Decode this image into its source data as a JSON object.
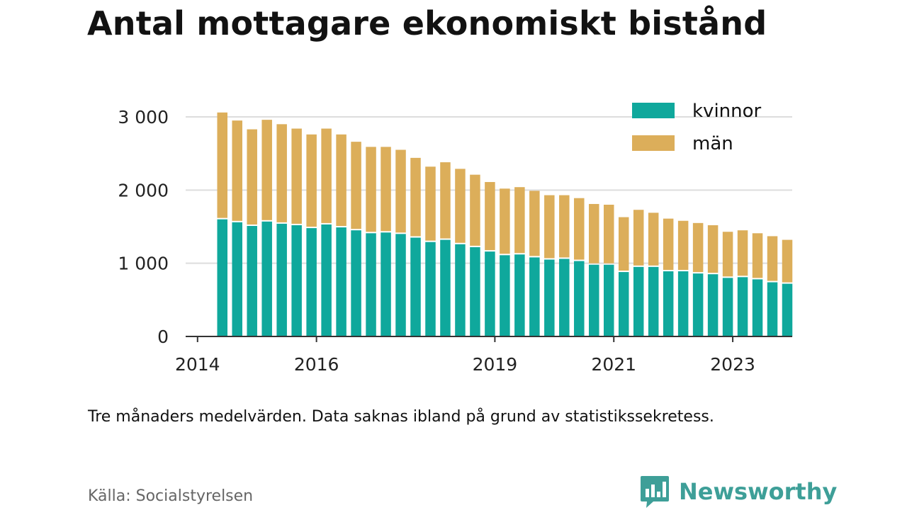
{
  "title": "Antal mottagare ekonomiskt bistånd",
  "note": "Tre månaders medelvärden. Data saknas ibland på grund av statistikssekretess.",
  "source": "Källa: Socialstyrelsen",
  "brand": {
    "name": "Newsworthy",
    "icon": "newsworthy-logo-icon",
    "color": "#3e9f98"
  },
  "colors": {
    "kvinnor": "#0fa89c",
    "man": "#dcae5a",
    "grid": "#dddddd",
    "axis": "#333333"
  },
  "chart_data": {
    "type": "bar",
    "stacked": true,
    "x_start": "2014-06",
    "x_step_months": 3,
    "x_ticks": [
      {
        "label": "2014",
        "x": 2014.0
      },
      {
        "label": "2016",
        "x": 2016.0
      },
      {
        "label": "2019",
        "x": 2019.0
      },
      {
        "label": "2021",
        "x": 2021.0
      },
      {
        "label": "2023",
        "x": 2023.0
      }
    ],
    "x_range": [
      2013.8,
      2024.0
    ],
    "y_ticks": [
      {
        "label": "0",
        "value": 0
      },
      {
        "label": "1 000",
        "value": 1000
      },
      {
        "label": "2 000",
        "value": 2000
      },
      {
        "label": "3 000",
        "value": 3000
      }
    ],
    "ylim": [
      0,
      3000
    ],
    "legend_position": "top-right",
    "grid": true,
    "series": [
      {
        "name": "kvinnor",
        "values": [
          1600,
          1560,
          1510,
          1570,
          1540,
          1520,
          1480,
          1530,
          1490,
          1450,
          1410,
          1420,
          1400,
          1350,
          1290,
          1320,
          1260,
          1220,
          1160,
          1110,
          1120,
          1080,
          1050,
          1060,
          1030,
          980,
          980,
          880,
          950,
          950,
          890,
          890,
          860,
          850,
          800,
          810,
          780,
          740,
          720
        ]
      },
      {
        "name": "män",
        "values": [
          1460,
          1390,
          1320,
          1390,
          1360,
          1320,
          1280,
          1310,
          1270,
          1210,
          1180,
          1170,
          1150,
          1090,
          1030,
          1060,
          1030,
          990,
          950,
          910,
          920,
          910,
          880,
          870,
          860,
          830,
          820,
          750,
          780,
          740,
          720,
          690,
          690,
          670,
          630,
          640,
          630,
          630,
          600
        ]
      }
    ]
  }
}
